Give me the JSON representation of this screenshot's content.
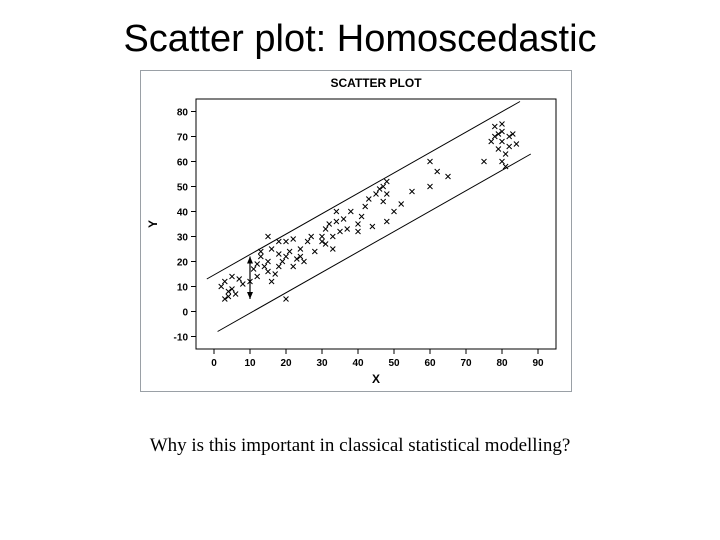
{
  "slide": {
    "title": "Scatter plot: Homoscedastic",
    "footnote": "Why is this important in classical statistical modelling?"
  },
  "chart": {
    "type": "scatter",
    "title": "SCATTER PLOT",
    "title_fontsize": 12,
    "title_fontweight": "bold",
    "xlabel": "X",
    "ylabel": "Y",
    "label_fontsize": 12,
    "label_fontweight": "bold",
    "tick_fontsize": 10,
    "tick_fontweight": "bold",
    "xlim": [
      -5,
      95
    ],
    "ylim": [
      -15,
      85
    ],
    "xticks": [
      0,
      10,
      20,
      30,
      40,
      50,
      60,
      70,
      80,
      90
    ],
    "yticks": [
      -10,
      0,
      10,
      20,
      30,
      40,
      50,
      60,
      70,
      80
    ],
    "marker": "x",
    "marker_size": 5,
    "marker_color": "#000000",
    "axis_color": "#000000",
    "frame_color": "#000000",
    "axis_width": 1,
    "background_color": "#ffffff",
    "arrow": {
      "x": 10,
      "y_from": 5,
      "y_to": 22,
      "color": "#000000"
    },
    "band_lines": [
      {
        "x1": 1,
        "y1": -8,
        "x2": 88,
        "y2": 63,
        "color": "#000000",
        "width": 1
      },
      {
        "x1": -2,
        "y1": 13,
        "x2": 85,
        "y2": 84,
        "color": "#000000",
        "width": 1
      }
    ],
    "points": [
      [
        2,
        10
      ],
      [
        3,
        5
      ],
      [
        4,
        8
      ],
      [
        3,
        12
      ],
      [
        5,
        9
      ],
      [
        6,
        7
      ],
      [
        7,
        13
      ],
      [
        8,
        11
      ],
      [
        5,
        14
      ],
      [
        4,
        6
      ],
      [
        10,
        12
      ],
      [
        11,
        17
      ],
      [
        12,
        14
      ],
      [
        13,
        22
      ],
      [
        14,
        18
      ],
      [
        13,
        24
      ],
      [
        15,
        16
      ],
      [
        15,
        20
      ],
      [
        16,
        25
      ],
      [
        12,
        19
      ],
      [
        17,
        15
      ],
      [
        18,
        23
      ],
      [
        19,
        20
      ],
      [
        20,
        22
      ],
      [
        20,
        28
      ],
      [
        18,
        18
      ],
      [
        16,
        12
      ],
      [
        15,
        30
      ],
      [
        22,
        18
      ],
      [
        23,
        21
      ],
      [
        24,
        25
      ],
      [
        25,
        20
      ],
      [
        26,
        28
      ],
      [
        24,
        22
      ],
      [
        27,
        30
      ],
      [
        28,
        24
      ],
      [
        22,
        29
      ],
      [
        21,
        24
      ],
      [
        20,
        5
      ],
      [
        18,
        28
      ],
      [
        30,
        30
      ],
      [
        31,
        33
      ],
      [
        31,
        27
      ],
      [
        32,
        35
      ],
      [
        33,
        30
      ],
      [
        34,
        36
      ],
      [
        34,
        40
      ],
      [
        35,
        32
      ],
      [
        33,
        25
      ],
      [
        30,
        28
      ],
      [
        36,
        37
      ],
      [
        37,
        33
      ],
      [
        38,
        40
      ],
      [
        40,
        35
      ],
      [
        41,
        38
      ],
      [
        42,
        42
      ],
      [
        40,
        32
      ],
      [
        43,
        45
      ],
      [
        44,
        34
      ],
      [
        48,
        36
      ],
      [
        45,
        47
      ],
      [
        46,
        49
      ],
      [
        47,
        44
      ],
      [
        47,
        50
      ],
      [
        48,
        52
      ],
      [
        50,
        40
      ],
      [
        52,
        43
      ],
      [
        48,
        47
      ],
      [
        60,
        50
      ],
      [
        62,
        56
      ],
      [
        60,
        60
      ],
      [
        65,
        54
      ],
      [
        55,
        48
      ],
      [
        78,
        70
      ],
      [
        79,
        65
      ],
      [
        80,
        72
      ],
      [
        80,
        68
      ],
      [
        80,
        60
      ],
      [
        80,
        75
      ],
      [
        81,
        63
      ],
      [
        82,
        70
      ],
      [
        82,
        66
      ],
      [
        75,
        60
      ],
      [
        78,
        74
      ],
      [
        83,
        71
      ],
      [
        84,
        67
      ],
      [
        79,
        71
      ],
      [
        81,
        58
      ],
      [
        77,
        68
      ]
    ]
  }
}
